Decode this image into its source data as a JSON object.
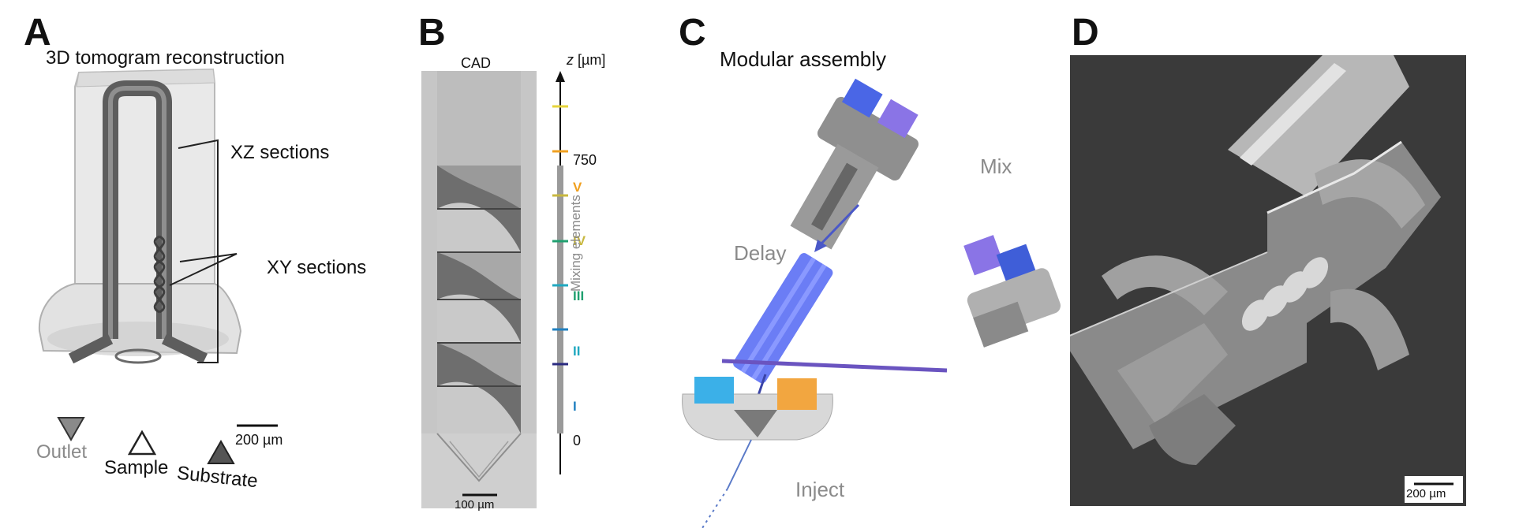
{
  "figure": {
    "panels": {
      "A": {
        "letter": "A",
        "title": "3D tomogram reconstruction",
        "xz_label": "XZ sections",
        "xy_label": "XY sections",
        "scalebar": "200 µm",
        "markers": {
          "outlet": "Outlet",
          "sample": "Sample",
          "substrate": "Substrate"
        },
        "colors": {
          "outlet": "#8a8a8a",
          "sample": "#ffffff",
          "substrate": "#555555"
        }
      },
      "B": {
        "letter": "B",
        "cad_label": "CAD",
        "z_label": "z",
        "z_unit": "[µm]",
        "tick_750": "750",
        "tick_0": "0",
        "mixing_label": "Mixing elements",
        "stages": [
          {
            "label": "V",
            "color": "#f0a020"
          },
          {
            "label": "IV",
            "color": "#c8b840"
          },
          {
            "label": "III",
            "color": "#20a070"
          },
          {
            "label": "II",
            "color": "#20a8c0"
          },
          {
            "label": "I",
            "color": "#2080c0"
          }
        ],
        "top_tick_color": "#e6d43a",
        "bottom_tick_color": "#2a2a80",
        "scalebar": "100 µm"
      },
      "C": {
        "letter": "C",
        "title": "Modular assembly",
        "mix": "Mix",
        "delay": "Delay",
        "inject": "Inject",
        "colors": {
          "blue": "#5a6cf0",
          "cyan": "#3bb0e8",
          "orange": "#f2a640",
          "purple": "#7a62d8"
        }
      },
      "D": {
        "letter": "D",
        "scalebar": "200 µm"
      }
    }
  }
}
